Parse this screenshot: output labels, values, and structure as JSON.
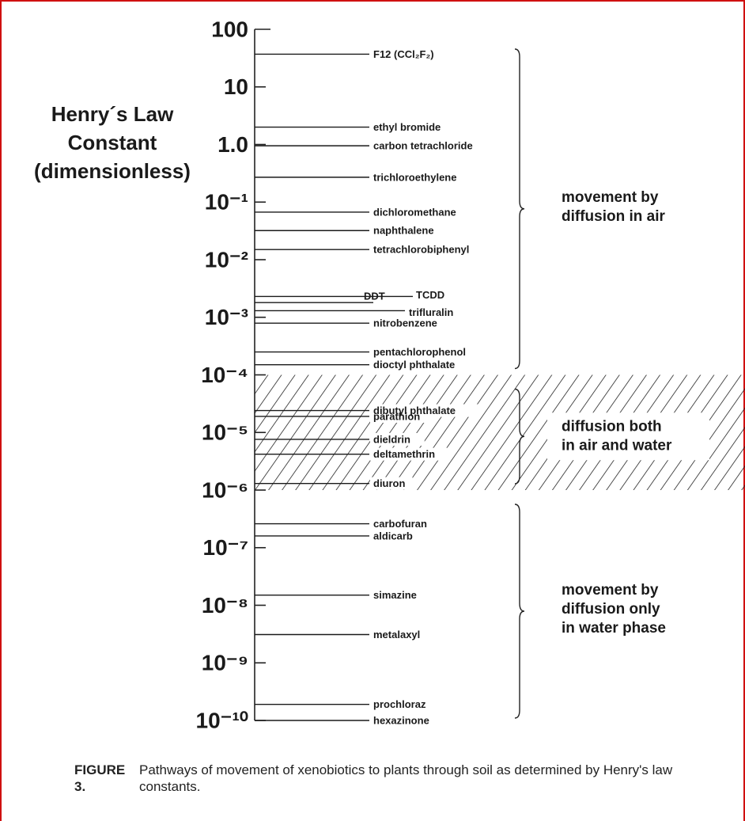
{
  "chart_data": {
    "type": "strip",
    "ylabel": [
      "Henry´s Law",
      "Constant",
      "(dimensionless)"
    ],
    "log_scale": true,
    "ylim": [
      1e-10,
      100
    ],
    "yticks": [
      100,
      10,
      {
        "value": 1,
        "label": "1.0"
      },
      {
        "value": 0.1,
        "label": "10⁻¹"
      },
      {
        "value": 0.01,
        "label": "10⁻²"
      },
      {
        "value": 0.001,
        "label": "10⁻³"
      },
      {
        "value": 0.0001,
        "label": "10⁻⁴"
      },
      {
        "value": 1e-05,
        "label": "10⁻⁵"
      },
      {
        "value": 1e-06,
        "label": "10⁻⁶"
      },
      {
        "value": 1e-07,
        "label": "10⁻⁷"
      },
      {
        "value": 1e-08,
        "label": "10⁻⁸"
      },
      {
        "value": 1e-09,
        "label": "10⁻⁹"
      },
      {
        "value": 1e-10,
        "label": "10⁻¹⁰"
      }
    ],
    "categories": [
      "F12 (CCl₂F₂)",
      "ethyl bromide",
      "carbon tetrachloride",
      "trichloroethylene",
      "dichloromethane",
      "naphthalene",
      "tetrachlorobiphenyl",
      "TCDD",
      "DDT",
      "trifluralin",
      "nitrobenzene",
      "pentachlorophenol",
      "dioctyl phthalate",
      "dibutyl phthalate",
      "parathion",
      "dieldrin",
      "deltamethrin",
      "diuron",
      "carbofuran",
      "aldicarb",
      "simazine",
      "metalaxyl",
      "prochloraz",
      "hexazinone"
    ],
    "values": [
      37,
      2.0,
      0.95,
      0.27,
      0.067,
      0.032,
      0.015,
      0.0023,
      0.0018,
      0.0013,
      0.00079,
      0.00025,
      0.00015,
      2.4e-05,
      1.9e-05,
      7.6e-06,
      4.2e-06,
      1.3e-06,
      2.6e-07,
      1.6e-07,
      1.5e-08,
      3.1e-09,
      1.9e-10,
      1e-10
    ],
    "color": "#1a1a1a",
    "regions": [
      {
        "label": [
          "movement by",
          "diffusion in air"
        ],
        "range": [
          0.0001,
          100
        ],
        "hatched": false
      },
      {
        "label": [
          "diffusion both",
          "in air and water"
        ],
        "range": [
          1e-06,
          0.0001
        ],
        "hatched": true
      },
      {
        "label": [
          "movement by",
          "diffusion only",
          "in water phase"
        ],
        "range": [
          1e-10,
          1e-06
        ],
        "hatched": false
      }
    ]
  },
  "caption": {
    "figure": "FIGURE 3.",
    "text": "Pathways of movement of xenobiotics to plants through soil as determined by Henry's law constants."
  }
}
